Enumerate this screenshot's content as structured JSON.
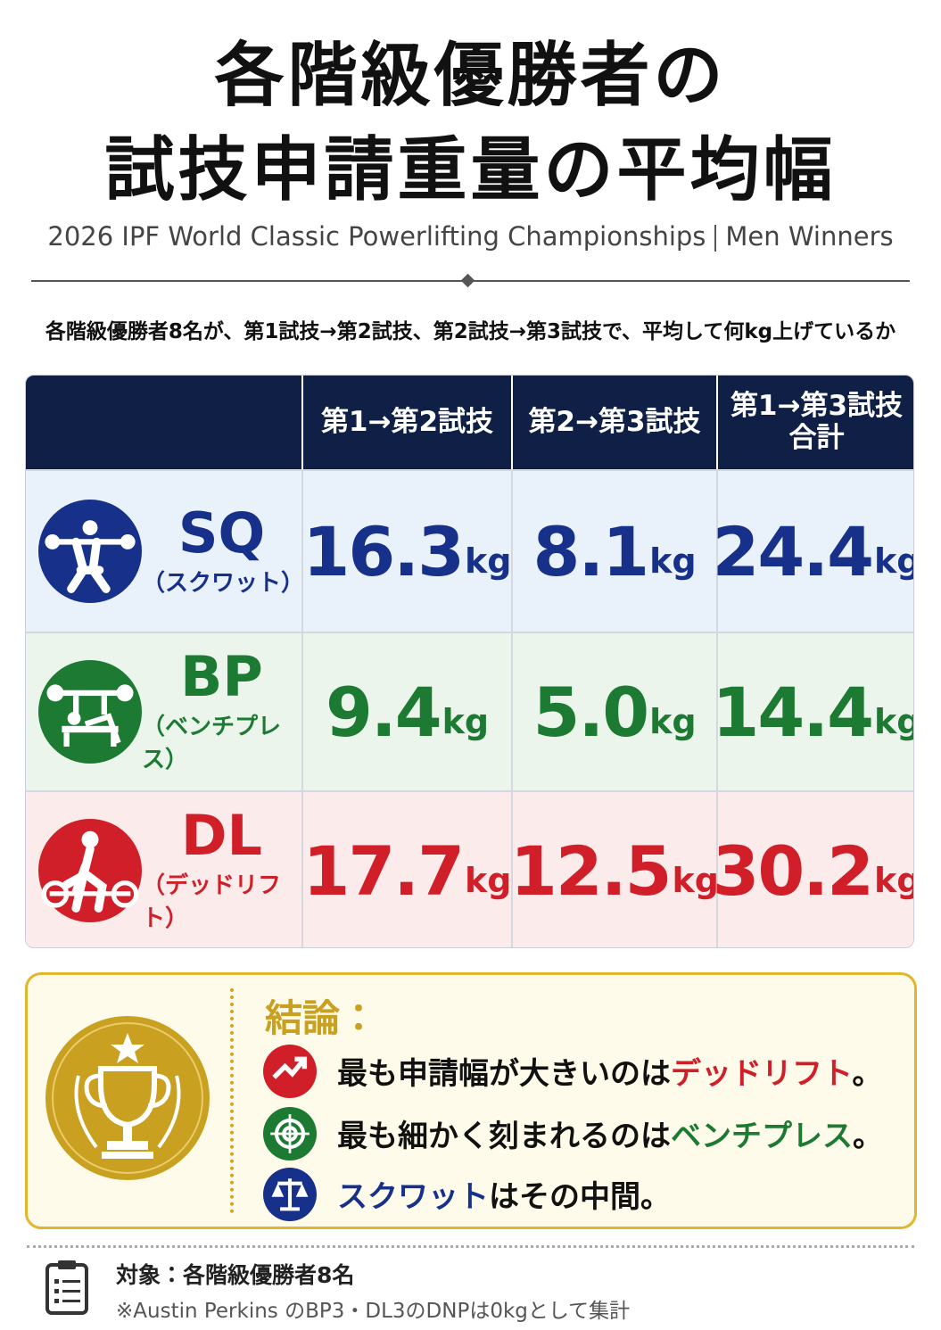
{
  "header": {
    "title_lines": [
      "各階級優勝者の",
      "試技申請重量の平均幅"
    ],
    "subtitle": "2026 IPF World Classic Powerlifting Championships",
    "subtitle_tag": "Men Winners"
  },
  "description": "各階級優勝者8名が、第1試技→第2試技、第2試技→第3試技で、平均して何kg上げているか",
  "table": {
    "columns": [
      [
        "第1→第2試技"
      ],
      [
        "第2→第3試技"
      ],
      [
        "第1→第3試技",
        "合計"
      ]
    ],
    "unit": "kg",
    "rows": [
      {
        "code": "SQ",
        "name": "（スクワット）",
        "values": [
          "16.3",
          "8.1",
          "24.4"
        ]
      },
      {
        "code": "BP",
        "name": "（ベンチプレス）",
        "values": [
          "9.4",
          "5.0",
          "14.4"
        ]
      },
      {
        "code": "DL",
        "name": "（デッドリフト）",
        "values": [
          "17.7",
          "12.5",
          "30.2"
        ]
      }
    ]
  },
  "conclusion": {
    "title": "結論：",
    "items": [
      {
        "before": "最も申請幅が大きいのは",
        "highlight": "デッドリフト",
        "after": "。"
      },
      {
        "before": "最も細かく刻まれるのは",
        "highlight": "ベンチプレス",
        "after": "。"
      },
      {
        "highlight": "スクワット",
        "after": "はその中間。"
      }
    ]
  },
  "footer": {
    "target": "対象：各階級優勝者8名",
    "note": "※Austin Perkins のBP3・DL3のDNPは0kgとして集計"
  }
}
